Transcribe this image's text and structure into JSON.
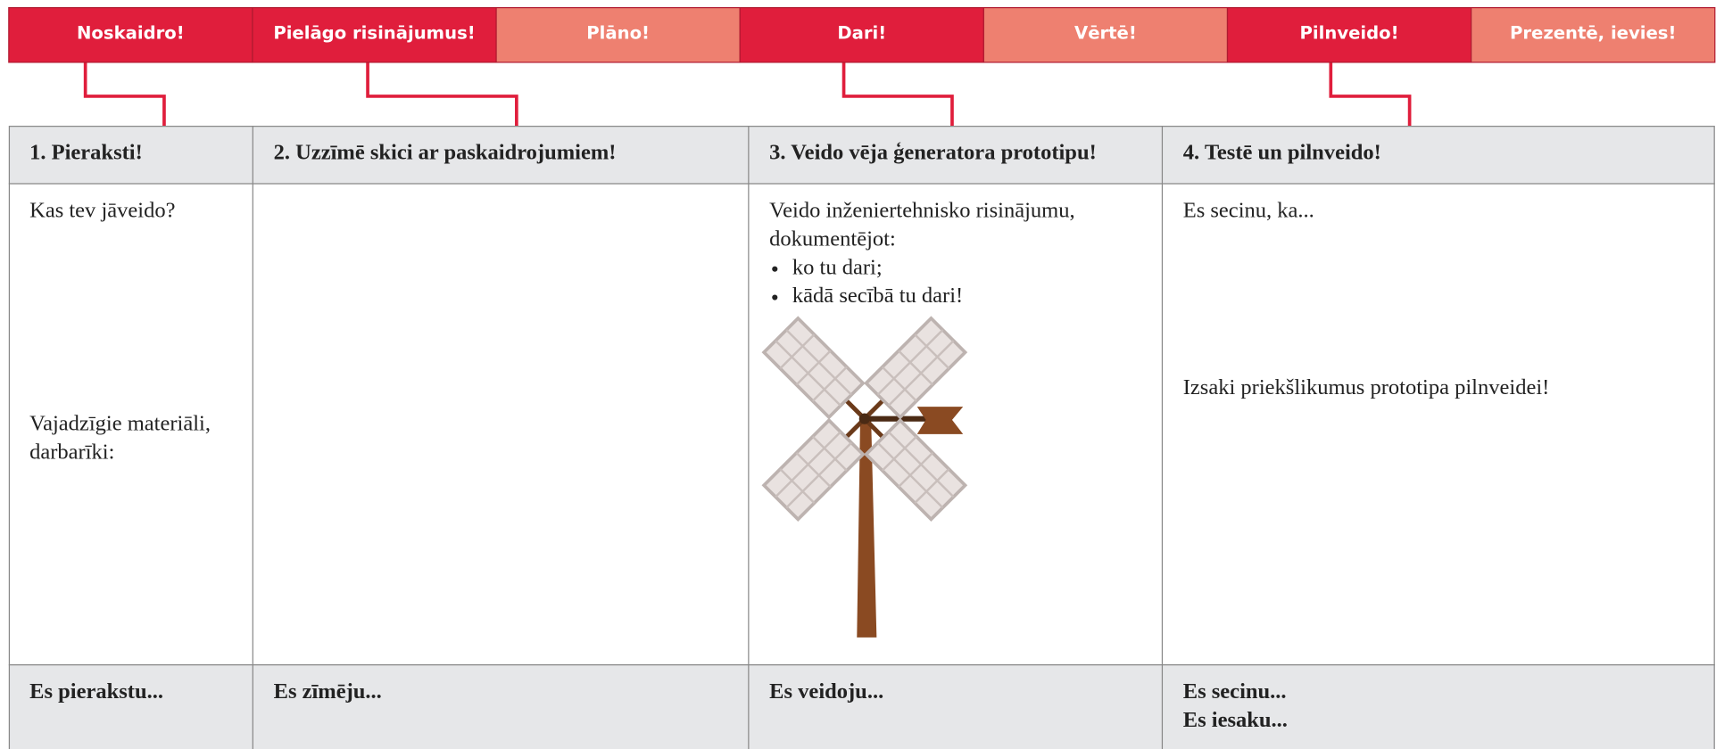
{
  "tabs": [
    {
      "label": "Noskaidro!",
      "style": "dark"
    },
    {
      "label": "Pielāgo risinājumus!",
      "style": "dark"
    },
    {
      "label": "Plāno!",
      "style": "light"
    },
    {
      "label": "Dari!",
      "style": "dark"
    },
    {
      "label": "Vērtē!",
      "style": "light"
    },
    {
      "label": "Pilnveido!",
      "style": "dark"
    },
    {
      "label": "Prezentē, ievies!",
      "style": "light"
    }
  ],
  "columns": [
    {
      "header": "1. Pieraksti!",
      "body": [
        {
          "lines": [
            "Kas tev jāveido?"
          ]
        },
        {
          "lines": [
            "Vajadzīgie materiāli,",
            "darbarīki:"
          ]
        }
      ],
      "footer": [
        "Es pierakstu..."
      ]
    },
    {
      "header": "2. Uzzīmē skici ar paskaidrojumiem!",
      "body": [],
      "footer": [
        "Es zīmēju..."
      ]
    },
    {
      "header": "3. Veido vēja ģeneratora prototipu!",
      "body": [
        {
          "lines": [
            "Veido inženiertehnisko risinājumu,",
            "dokumentējot:"
          ],
          "bullets": [
            "ko tu dari;",
            "kādā secībā tu dari!"
          ]
        }
      ],
      "footer": [
        "Es veidoju..."
      ]
    },
    {
      "header": "4. Testē un pilnveido!",
      "body": [
        {
          "lines": [
            "Es secinu, ka..."
          ]
        },
        {
          "lines": [
            "Izsaki priekšlikumus prototipa pilnveidei!"
          ]
        }
      ],
      "footer": [
        "Es secinu...",
        "Es iesaku..."
      ]
    }
  ]
}
